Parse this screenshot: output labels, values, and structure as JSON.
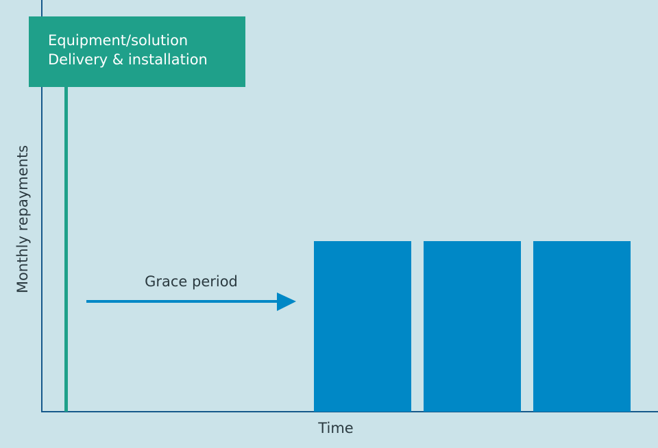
{
  "milestone": {
    "lines": [
      "Equipment/solution",
      "Delivery & installation"
    ]
  },
  "annotation": "Grace period",
  "axes": {
    "y_label": "Monthly repayments",
    "x_label": "Time"
  }
}
